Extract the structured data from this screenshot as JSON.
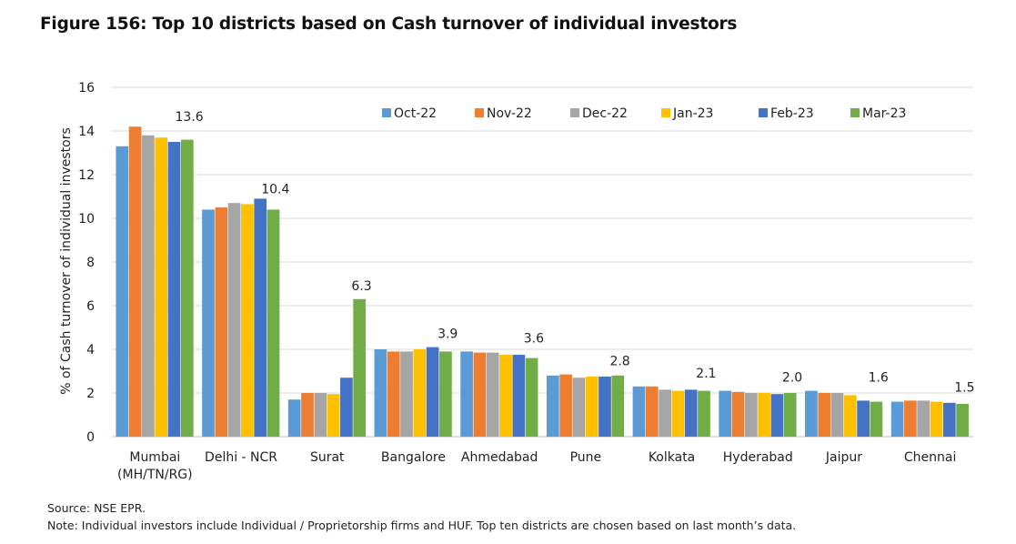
{
  "figure_title": "Figure 156: Top 10 districts based on Cash turnover of individual investors",
  "source_note": "Source: NSE EPR.",
  "footnote": "Note: Individual investors include Individual / Proprietorship firms and HUF. Top ten districts are chosen based on last month’s data.",
  "chart_data": {
    "type": "bar",
    "ylabel": "% of Cash turnover of individual investors",
    "ylim": [
      0,
      16
    ],
    "yticks": [
      0,
      2,
      4,
      6,
      8,
      10,
      12,
      14,
      16
    ],
    "grid": true,
    "legend_position": "top-right",
    "categories": [
      [
        "Mumbai",
        "(MH/TN/RG)"
      ],
      [
        "Delhi - NCR"
      ],
      [
        "Surat"
      ],
      [
        "Bangalore"
      ],
      [
        "Ahmedabad"
      ],
      [
        "Pune"
      ],
      [
        "Kolkata"
      ],
      [
        "Hyderabad"
      ],
      [
        "Jaipur"
      ],
      [
        "Chennai"
      ]
    ],
    "series": [
      {
        "name": "Oct-22",
        "color": "#5B9BD5",
        "values": [
          13.3,
          10.4,
          1.7,
          4.0,
          3.9,
          2.8,
          2.3,
          2.1,
          2.1,
          1.6
        ]
      },
      {
        "name": "Nov-22",
        "color": "#ED7D31",
        "values": [
          14.2,
          10.5,
          2.0,
          3.9,
          3.85,
          2.85,
          2.3,
          2.05,
          2.0,
          1.65
        ]
      },
      {
        "name": "Dec-22",
        "color": "#A5A5A5",
        "values": [
          13.8,
          10.7,
          2.0,
          3.9,
          3.85,
          2.7,
          2.15,
          2.0,
          2.0,
          1.65
        ]
      },
      {
        "name": "Jan-23",
        "color": "#FFC000",
        "values": [
          13.7,
          10.65,
          1.95,
          4.0,
          3.75,
          2.75,
          2.1,
          2.0,
          1.9,
          1.6
        ]
      },
      {
        "name": "Feb-23",
        "color": "#4472C4",
        "values": [
          13.5,
          10.9,
          2.7,
          4.1,
          3.75,
          2.75,
          2.15,
          1.95,
          1.65,
          1.55
        ]
      },
      {
        "name": "Mar-23",
        "color": "#70AD47",
        "values": [
          13.6,
          10.4,
          6.3,
          3.9,
          3.6,
          2.8,
          2.1,
          2.0,
          1.6,
          1.5
        ]
      }
    ],
    "data_labels": [
      "13.6",
      "10.4",
      "6.3",
      "3.9",
      "3.6",
      "2.8",
      "2.1",
      "2.0",
      "1.6",
      "1.5"
    ],
    "colors": {
      "axis": "#bfbfbf",
      "grid": "#d9d9d9",
      "text": "#222222"
    }
  }
}
